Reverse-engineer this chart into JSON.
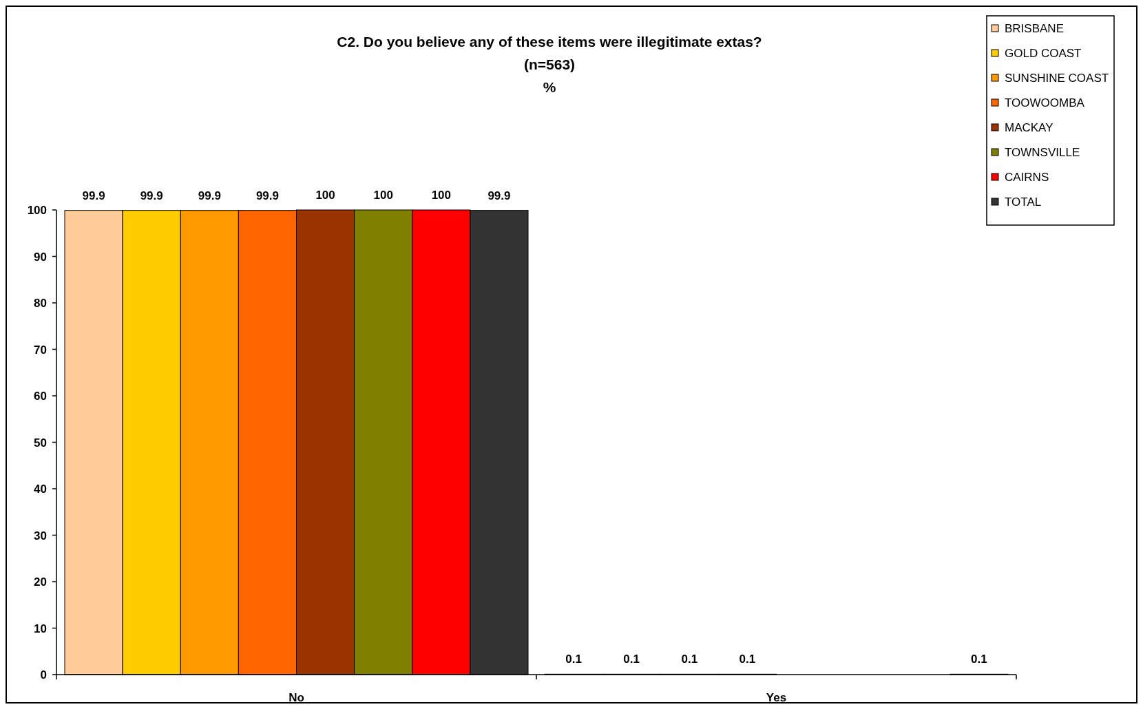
{
  "chart_data": {
    "type": "bar",
    "title": "C2. Do you believe any of these items were illegitimate extas?\n(n=563)\n%",
    "categories": [
      "No",
      "Yes"
    ],
    "series": [
      {
        "name": "BRISBANE",
        "color": "#ffcc99",
        "values": [
          99.9,
          0.1
        ],
        "value_labels": [
          "99.9",
          "0.1"
        ]
      },
      {
        "name": "GOLD COAST",
        "color": "#ffcc00",
        "values": [
          99.9,
          0.1
        ],
        "value_labels": [
          "99.9",
          "0.1"
        ]
      },
      {
        "name": "SUNSHINE COAST",
        "color": "#ff9900",
        "values": [
          99.9,
          0.1
        ],
        "value_labels": [
          "99.9",
          "0.1"
        ]
      },
      {
        "name": "TOOWOOMBA",
        "color": "#ff6600",
        "values": [
          99.9,
          0.1
        ],
        "value_labels": [
          "99.9",
          "0.1"
        ]
      },
      {
        "name": "MACKAY",
        "color": "#993300",
        "values": [
          100,
          0
        ],
        "value_labels": [
          "100",
          null
        ]
      },
      {
        "name": "TOWNSVILLE",
        "color": "#808000",
        "values": [
          100,
          0
        ],
        "value_labels": [
          "100",
          null
        ]
      },
      {
        "name": "CAIRNS",
        "color": "#ff0000",
        "values": [
          100,
          0
        ],
        "value_labels": [
          "100",
          null
        ]
      },
      {
        "name": "TOTAL",
        "color": "#333333",
        "values": [
          99.9,
          0.1
        ],
        "value_labels": [
          "99.9",
          "0.1"
        ]
      }
    ],
    "ylim": [
      0,
      100
    ],
    "yticks": [
      0,
      10,
      20,
      30,
      40,
      50,
      60,
      70,
      80,
      90,
      100
    ],
    "grid": false,
    "legend": "top right"
  }
}
